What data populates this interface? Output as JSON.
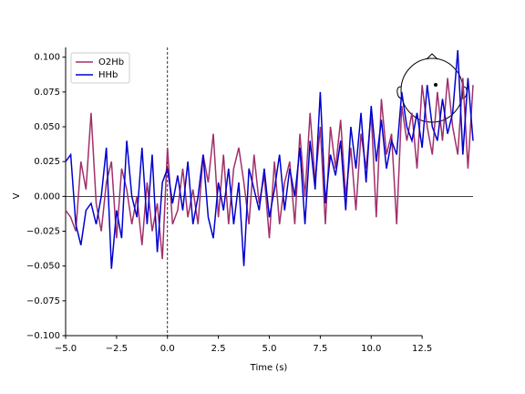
{
  "chart_data": {
    "type": "line",
    "x_label": "Time (s)",
    "y_label": "V",
    "x": [
      -5,
      -4.75,
      -4.5,
      -4.25,
      -4,
      -3.75,
      -3.5,
      -3.25,
      -3,
      -2.75,
      -2.5,
      -2.25,
      -2,
      -1.75,
      -1.5,
      -1.25,
      -1,
      -0.75,
      -0.5,
      -0.25,
      0,
      0.25,
      0.5,
      0.75,
      1,
      1.25,
      1.5,
      1.75,
      2,
      2.25,
      2.5,
      2.75,
      3,
      3.25,
      3.5,
      3.75,
      4,
      4.25,
      4.5,
      4.75,
      5,
      5.25,
      5.5,
      5.75,
      6,
      6.25,
      6.5,
      6.75,
      7,
      7.25,
      7.5,
      7.75,
      8,
      8.25,
      8.5,
      8.75,
      9,
      9.25,
      9.5,
      9.75,
      10,
      10.25,
      10.5,
      10.75,
      11,
      11.25,
      11.5,
      11.75,
      12,
      12.25,
      12.5,
      12.75,
      13,
      13.25,
      13.5,
      13.75,
      14,
      14.25,
      14.5,
      14.75,
      15
    ],
    "series": [
      {
        "name": "O2Hb",
        "color": "#a0306a",
        "values": [
          -0.01,
          -0.015,
          -0.025,
          0.025,
          0.005,
          0.06,
          -0.005,
          -0.025,
          0.01,
          0.025,
          -0.03,
          0.02,
          0.005,
          -0.02,
          0.0,
          -0.035,
          0.01,
          -0.025,
          -0.005,
          -0.045,
          0.035,
          -0.02,
          -0.01,
          0.02,
          -0.015,
          0.005,
          -0.02,
          0.03,
          0.01,
          0.045,
          -0.015,
          0.03,
          -0.02,
          0.02,
          0.035,
          0.01,
          -0.02,
          0.03,
          -0.005,
          0.015,
          -0.03,
          0.025,
          -0.02,
          0.01,
          0.025,
          -0.02,
          0.045,
          0.0,
          0.06,
          0.01,
          0.05,
          -0.02,
          0.05,
          0.02,
          0.055,
          0.0,
          0.035,
          -0.01,
          0.045,
          0.02,
          0.06,
          -0.015,
          0.07,
          0.03,
          0.045,
          -0.02,
          0.065,
          0.04,
          0.06,
          0.02,
          0.08,
          0.05,
          0.03,
          0.075,
          0.04,
          0.085,
          0.05,
          0.03,
          0.085,
          0.02,
          0.08
        ]
      },
      {
        "name": "HHb",
        "color": "#0000d0",
        "values": [
          0.025,
          0.03,
          -0.02,
          -0.035,
          -0.01,
          -0.005,
          -0.02,
          0.0,
          0.035,
          -0.052,
          -0.01,
          -0.03,
          0.04,
          0.0,
          -0.015,
          0.035,
          -0.02,
          0.03,
          -0.04,
          0.01,
          0.02,
          -0.005,
          0.015,
          -0.01,
          0.025,
          -0.02,
          0.0,
          0.03,
          -0.015,
          -0.03,
          0.01,
          -0.01,
          0.02,
          -0.02,
          0.01,
          -0.05,
          0.02,
          0.005,
          -0.01,
          0.02,
          -0.015,
          0.005,
          0.03,
          -0.01,
          0.02,
          0.0,
          0.035,
          -0.02,
          0.04,
          0.005,
          0.075,
          -0.005,
          0.03,
          0.015,
          0.04,
          -0.01,
          0.05,
          0.02,
          0.06,
          0.01,
          0.065,
          0.025,
          0.055,
          0.02,
          0.04,
          0.03,
          0.075,
          0.05,
          0.04,
          0.06,
          0.035,
          0.08,
          0.05,
          0.04,
          0.07,
          0.045,
          0.06,
          0.105,
          0.03,
          0.085,
          0.04
        ]
      }
    ],
    "xlim": [
      -5,
      15
    ],
    "ylim": [
      -0.1,
      0.107
    ],
    "xticks": [
      {
        "value": -5,
        "label": "−5.0"
      },
      {
        "value": -2.5,
        "label": "−2.5"
      },
      {
        "value": 0,
        "label": "0.0"
      },
      {
        "value": 2.5,
        "label": "2.5"
      },
      {
        "value": 5,
        "label": "5.0"
      },
      {
        "value": 7.5,
        "label": "7.5"
      },
      {
        "value": 10,
        "label": "10.0"
      },
      {
        "value": 12.5,
        "label": "12.5"
      }
    ],
    "yticks": [
      {
        "value": -0.1,
        "label": "−0.100"
      },
      {
        "value": -0.075,
        "label": "−0.075"
      },
      {
        "value": -0.05,
        "label": "−0.050"
      },
      {
        "value": -0.025,
        "label": "−0.025"
      },
      {
        "value": 0,
        "label": "0.000"
      },
      {
        "value": 0.025,
        "label": "0.025"
      },
      {
        "value": 0.05,
        "label": "0.050"
      },
      {
        "value": 0.075,
        "label": "0.075"
      },
      {
        "value": 0.1,
        "label": "0.100"
      }
    ],
    "legend": "upper left"
  }
}
